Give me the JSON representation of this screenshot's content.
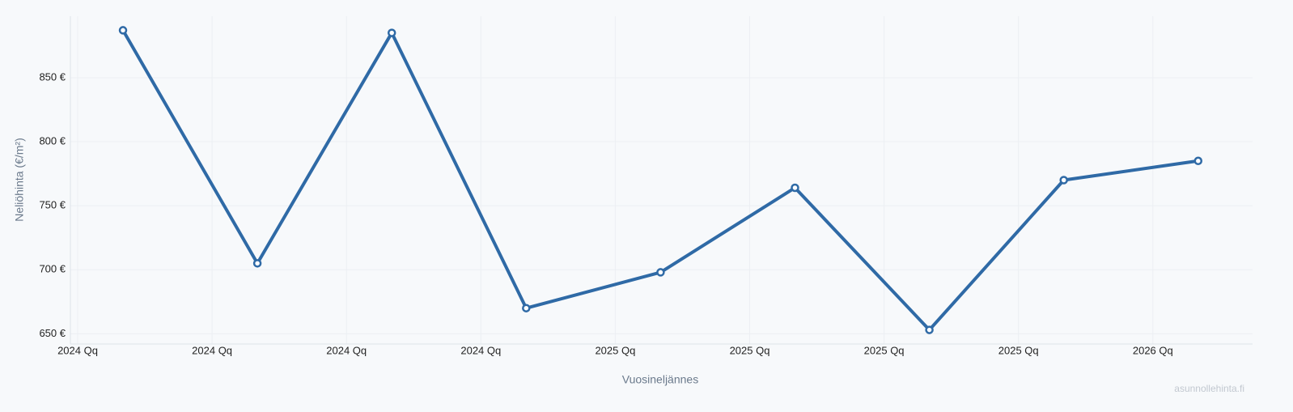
{
  "chart_data": {
    "type": "line",
    "x_label": "Vuosineljännes",
    "y_label": "Neliöhinta (€/m²)",
    "watermark": "asunnollehinta.fi",
    "categories": [
      "2024 Qq",
      "2024 Qq",
      "2024 Qq",
      "2024 Qq",
      "2025 Qq",
      "2025 Qq",
      "2025 Qq",
      "2025 Qq",
      "2026 Qq"
    ],
    "series": [
      {
        "color": "#2f6aa6",
        "values": [
          887,
          705,
          885,
          670,
          698,
          764,
          653,
          770,
          785
        ]
      }
    ],
    "ylim": [
      642,
      898
    ],
    "yticks": [
      {
        "value": 650,
        "label": "650 €"
      },
      {
        "value": 700,
        "label": "700 €"
      },
      {
        "value": 750,
        "label": "750 €"
      },
      {
        "value": 800,
        "label": "800 €"
      },
      {
        "value": 850,
        "label": "850 €"
      }
    ],
    "grid": true
  }
}
